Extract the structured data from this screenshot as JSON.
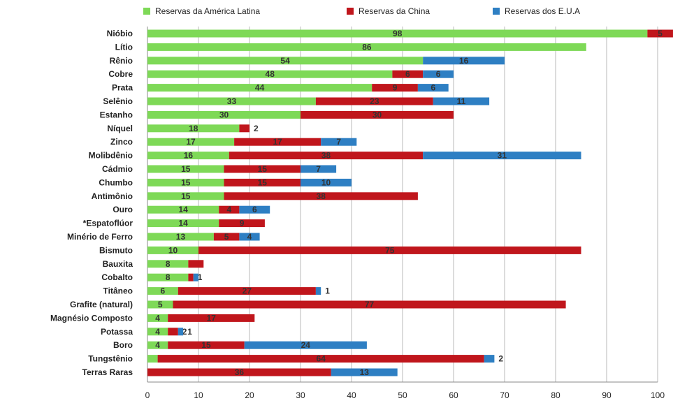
{
  "chart_data": {
    "type": "bar",
    "orientation": "horizontal",
    "stacked": true,
    "legend_position": "top",
    "grid": true,
    "xlim": [
      0,
      100
    ],
    "x_ticks": [
      0,
      10,
      20,
      30,
      40,
      50,
      60,
      70,
      80,
      90,
      100
    ],
    "categories": [
      "Nióbio",
      "Lítio",
      "Rênio",
      "Cobre",
      "Prata",
      "Selênio",
      "Estanho",
      "Níquel",
      "Zinco",
      "Molibdênio",
      "Cádmio",
      "Chumbo",
      "Antimônio",
      "Ouro",
      "*Espatoflúor",
      "Minério de Ferro",
      "Bismuto",
      "Bauxita",
      "Cobalto",
      "Titâneo",
      "Grafite (natural)",
      "Magnésio Composto",
      "Potassa",
      "Boro",
      "Tungstênio",
      "Terras Raras"
    ],
    "series": [
      {
        "name": "Reservas da América Latina",
        "color": "#7ed957",
        "values": [
          98,
          86,
          54,
          48,
          44,
          33,
          30,
          18,
          17,
          16,
          15,
          15,
          15,
          14,
          14,
          13,
          10,
          8,
          8,
          6,
          5,
          4,
          4,
          4,
          2,
          0
        ],
        "labels": [
          "98",
          "86",
          "54",
          "48",
          "44",
          "33",
          "30",
          "18",
          "17",
          "16",
          "15",
          "15",
          "15",
          "14",
          "14",
          "13",
          "10",
          "8",
          "8",
          "6",
          "5",
          "4",
          "4",
          "4",
          "2",
          ""
        ]
      },
      {
        "name": "Reservas da China",
        "color": "#c0161c",
        "values": [
          5,
          0,
          0,
          6,
          9,
          23,
          30,
          2,
          17,
          38,
          15,
          15,
          38,
          4,
          9,
          5,
          75,
          3,
          1,
          27,
          77,
          17,
          2,
          15,
          64,
          36
        ],
        "labels": [
          "5",
          "",
          "",
          "6",
          "9",
          "23",
          "30",
          "2",
          "17",
          "38",
          "15",
          "15",
          "38",
          "4",
          "9",
          "5",
          "75",
          "",
          "1",
          "27",
          "77",
          "17",
          "2",
          "15",
          "64",
          "36"
        ]
      },
      {
        "name": "Reservas dos E.U.A",
        "color": "#2e7fc3",
        "values": [
          0,
          0,
          16,
          6,
          6,
          11,
          0,
          0,
          7,
          31,
          7,
          10,
          0,
          6,
          0,
          4,
          0,
          0,
          1,
          1,
          0,
          0,
          1,
          24,
          2,
          13
        ],
        "labels": [
          "",
          "",
          "16",
          "6",
          "6",
          "11",
          "",
          "",
          "7",
          "31",
          "7",
          "10",
          "",
          "6",
          "",
          "4",
          "",
          "",
          "",
          "1",
          "",
          "",
          "1",
          "24",
          "2",
          "13"
        ]
      }
    ]
  }
}
